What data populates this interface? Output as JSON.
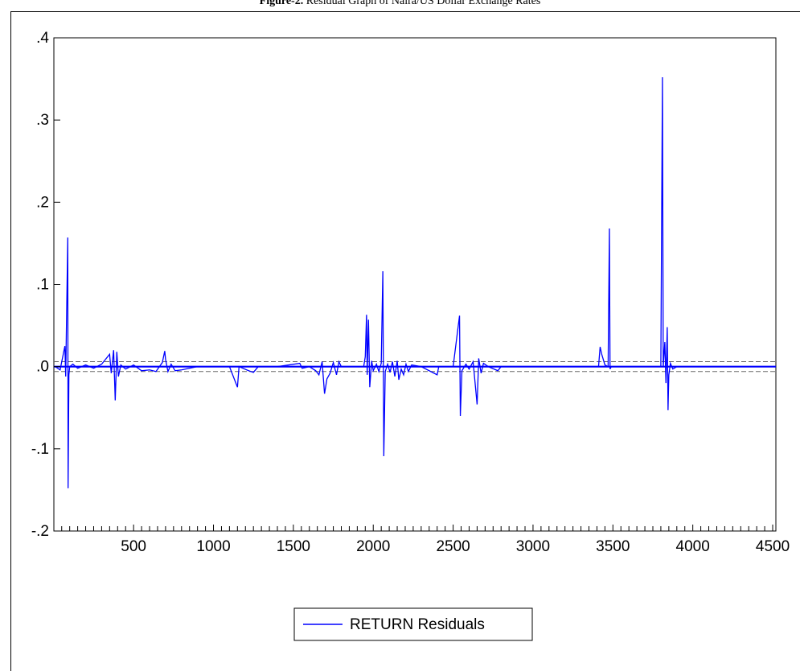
{
  "caption": {
    "label": "Figure-2.",
    "text": "Residual Graph of Naira/US Dollar Exchange Rates"
  },
  "chart_data": {
    "type": "line",
    "title": "",
    "xlabel": "",
    "ylabel": "",
    "xlim": [
      1,
      4520
    ],
    "ylim": [
      -0.2,
      0.4
    ],
    "x_ticks": [
      500,
      1000,
      1500,
      2000,
      2500,
      3000,
      3500,
      4000,
      4500
    ],
    "x_tick_labels": [
      "500",
      "1000",
      "1500",
      "2000",
      "2500",
      "3000",
      "3500",
      "4000",
      "4500"
    ],
    "y_ticks": [
      -0.2,
      -0.1,
      0.0,
      0.1,
      0.2,
      0.3,
      0.4
    ],
    "y_tick_labels": [
      "-.2",
      "-.1",
      ".0",
      ".1",
      ".2",
      ".3",
      ".4"
    ],
    "grid": false,
    "legend_position": "bottom-center",
    "reference_lines": [
      0.0,
      0.006,
      -0.006
    ],
    "series": [
      {
        "name": "RETURN Residuals",
        "color": "#0000ff",
        "points": [
          [
            10,
            0.0
          ],
          [
            40,
            -0.004
          ],
          [
            70,
            0.025
          ],
          [
            75,
            -0.012
          ],
          [
            88,
            0.157
          ],
          [
            90,
            -0.148
          ],
          [
            95,
            -0.01
          ],
          [
            100,
            0.0
          ],
          [
            120,
            0.003
          ],
          [
            150,
            -0.002
          ],
          [
            200,
            0.002
          ],
          [
            250,
            -0.002
          ],
          [
            300,
            0.003
          ],
          [
            350,
            0.015
          ],
          [
            360,
            -0.008
          ],
          [
            375,
            0.02
          ],
          [
            385,
            -0.041
          ],
          [
            395,
            0.018
          ],
          [
            405,
            -0.012
          ],
          [
            420,
            0.002
          ],
          [
            450,
            -0.003
          ],
          [
            500,
            0.002
          ],
          [
            550,
            -0.005
          ],
          [
            600,
            -0.004
          ],
          [
            640,
            -0.006
          ],
          [
            680,
            0.005
          ],
          [
            695,
            0.019
          ],
          [
            700,
            0.009
          ],
          [
            715,
            -0.006
          ],
          [
            735,
            0.003
          ],
          [
            760,
            -0.005
          ],
          [
            800,
            -0.004
          ],
          [
            900,
            0.0
          ],
          [
            1100,
            0.0
          ],
          [
            1150,
            -0.025
          ],
          [
            1160,
            0.0
          ],
          [
            1220,
            -0.005
          ],
          [
            1250,
            -0.007
          ],
          [
            1280,
            0.0
          ],
          [
            1400,
            0.0
          ],
          [
            1540,
            0.004
          ],
          [
            1555,
            -0.002
          ],
          [
            1600,
            0.0
          ],
          [
            1640,
            -0.005
          ],
          [
            1660,
            -0.01
          ],
          [
            1680,
            0.006
          ],
          [
            1695,
            -0.033
          ],
          [
            1710,
            -0.015
          ],
          [
            1730,
            -0.008
          ],
          [
            1750,
            0.005
          ],
          [
            1770,
            -0.01
          ],
          [
            1785,
            0.006
          ],
          [
            1800,
            0.0
          ],
          [
            1940,
            0.0
          ],
          [
            1950,
            0.012
          ],
          [
            1958,
            0.063
          ],
          [
            1962,
            -0.01
          ],
          [
            1970,
            0.057
          ],
          [
            1978,
            -0.025
          ],
          [
            1990,
            0.007
          ],
          [
            2000,
            -0.005
          ],
          [
            2020,
            0.003
          ],
          [
            2035,
            -0.006
          ],
          [
            2050,
            0.004
          ],
          [
            2060,
            0.116
          ],
          [
            2066,
            -0.109
          ],
          [
            2075,
            -0.006
          ],
          [
            2090,
            0.003
          ],
          [
            2105,
            -0.007
          ],
          [
            2120,
            0.006
          ],
          [
            2135,
            -0.012
          ],
          [
            2150,
            0.007
          ],
          [
            2160,
            -0.016
          ],
          [
            2175,
            -0.003
          ],
          [
            2190,
            -0.01
          ],
          [
            2205,
            0.003
          ],
          [
            2220,
            -0.006
          ],
          [
            2240,
            0.002
          ],
          [
            2300,
            0.0
          ],
          [
            2400,
            -0.01
          ],
          [
            2410,
            0.0
          ],
          [
            2500,
            0.0
          ],
          [
            2540,
            0.062
          ],
          [
            2545,
            -0.06
          ],
          [
            2555,
            -0.005
          ],
          [
            2580,
            0.003
          ],
          [
            2600,
            -0.003
          ],
          [
            2625,
            0.006
          ],
          [
            2650,
            -0.046
          ],
          [
            2660,
            0.01
          ],
          [
            2675,
            -0.008
          ],
          [
            2690,
            0.004
          ],
          [
            2720,
            0.0
          ],
          [
            2780,
            -0.005
          ],
          [
            2800,
            0.0
          ],
          [
            3000,
            0.0
          ],
          [
            3200,
            0.0
          ],
          [
            3410,
            0.0
          ],
          [
            3420,
            0.024
          ],
          [
            3430,
            0.015
          ],
          [
            3450,
            0.002
          ],
          [
            3470,
            0.0
          ],
          [
            3478,
            0.168
          ],
          [
            3482,
            -0.003
          ],
          [
            3490,
            0.0
          ],
          [
            3600,
            0.0
          ],
          [
            3800,
            0.0
          ],
          [
            3810,
            0.352
          ],
          [
            3815,
            0.0
          ],
          [
            3825,
            0.03
          ],
          [
            3832,
            -0.02
          ],
          [
            3840,
            0.048
          ],
          [
            3845,
            -0.053
          ],
          [
            3850,
            -0.01
          ],
          [
            3860,
            0.004
          ],
          [
            3875,
            -0.003
          ],
          [
            3900,
            0.0
          ],
          [
            4000,
            0.0
          ],
          [
            4200,
            0.0
          ],
          [
            4520,
            0.0
          ]
        ]
      }
    ]
  }
}
